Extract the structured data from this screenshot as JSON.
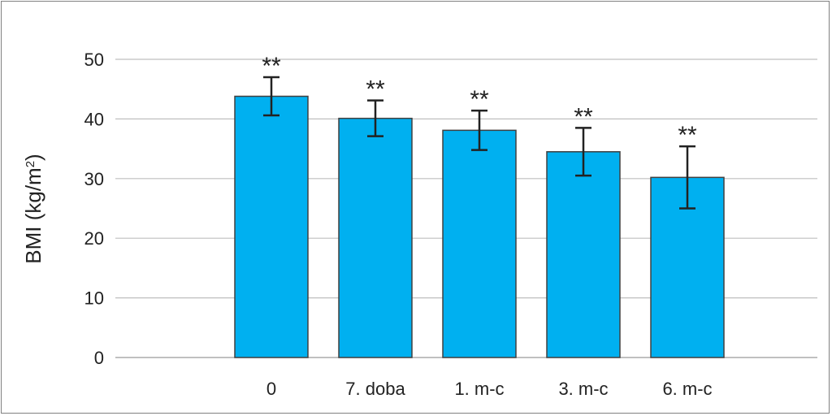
{
  "chart_data": {
    "type": "bar",
    "categories": [
      "0",
      "7. doba",
      "1. m-c",
      "3. m-c",
      "6. m-c"
    ],
    "values": [
      43.8,
      40.1,
      38.1,
      34.5,
      30.2
    ],
    "error": [
      3.2,
      3.0,
      3.3,
      4.0,
      5.2
    ],
    "annotations": [
      "**",
      "**",
      "**",
      "**",
      "**"
    ],
    "ylabel": "BMI (kg/m2)",
    "ylabel_main": "BMI (kg/m",
    "ylabel_sup": "2",
    "ylabel_end": ")",
    "yticks": [
      "0",
      "10",
      "20",
      "30",
      "40",
      "50"
    ],
    "ylim": [
      0,
      50
    ],
    "grid": true,
    "bar_color": "#00b0f0",
    "bar_edge_color": "#404040",
    "grid_color": "#bfbfbf"
  }
}
